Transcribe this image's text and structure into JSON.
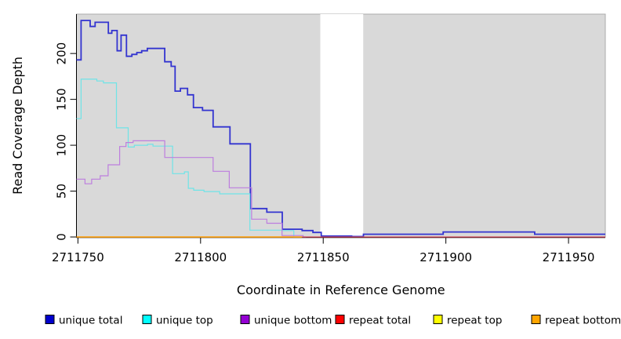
{
  "chart_data": {
    "type": "line",
    "line_style": "step",
    "title": "",
    "xlabel": "Coordinate in Reference Genome",
    "ylabel": "Read Coverage Depth",
    "x_domain": [
      2711749.4,
      2711965
    ],
    "y_domain": [
      0,
      242.9
    ],
    "x_tick_values": [
      2711750,
      2711800,
      2711850,
      2711900,
      2711950
    ],
    "x_tick_labels": [
      "2711750",
      "2711800",
      "2711850",
      "2711900",
      "2711950"
    ],
    "y_tick_values": [
      0,
      50,
      100,
      150,
      200
    ],
    "y_tick_labels": [
      "0",
      "50",
      "100",
      "150",
      "200"
    ],
    "grid": false,
    "panel_bg": "#D9D9D9",
    "panel_border": "#ACACAC",
    "axis_color": "#000000",
    "no_data_band": {
      "x_start": 2711848.8,
      "x_end": 2711866.3,
      "color": "#FFFFFF"
    },
    "legend_position": "bottom",
    "series": [
      {
        "name": "unique total",
        "line_color": "#3334D0",
        "legend_fill": "#0000CD",
        "line_width": 1.8,
        "end_x": 2711965,
        "steps": [
          [
            2711749,
            193
          ],
          [
            2711751.3,
            236
          ],
          [
            2711755,
            229.5
          ],
          [
            2711757,
            234
          ],
          [
            2711762.4,
            222
          ],
          [
            2711763.8,
            225
          ],
          [
            2711766,
            203
          ],
          [
            2711767.6,
            220
          ],
          [
            2711769.8,
            197
          ],
          [
            2711772,
            199
          ],
          [
            2711774,
            201
          ],
          [
            2711776,
            203
          ],
          [
            2711778.3,
            205.5
          ],
          [
            2711785.4,
            191
          ],
          [
            2711788,
            186
          ],
          [
            2711789.6,
            159
          ],
          [
            2711791.8,
            162
          ],
          [
            2711794.7,
            155
          ],
          [
            2711797.1,
            141
          ],
          [
            2711800.8,
            138
          ],
          [
            2711805.1,
            120
          ],
          [
            2711812,
            101.5
          ],
          [
            2711820.3,
            31
          ],
          [
            2711827,
            27
          ],
          [
            2711833.3,
            8.5
          ],
          [
            2711841.4,
            7
          ],
          [
            2711845.8,
            5
          ],
          [
            2711849.2,
            1
          ],
          [
            2711861.6,
            0.5
          ],
          [
            2711866.4,
            3
          ],
          [
            2711898.9,
            5.5
          ],
          [
            2711936.2,
            3
          ]
        ]
      },
      {
        "name": "unique top",
        "line_color": "#6FE4E7",
        "legend_fill": "#00FFFF",
        "line_width": 1.2,
        "end_x": 2711841,
        "steps": [
          [
            2711749,
            129
          ],
          [
            2711751.3,
            172
          ],
          [
            2711757.7,
            170
          ],
          [
            2711760.4,
            168
          ],
          [
            2711765.7,
            119
          ],
          [
            2711770.5,
            98
          ],
          [
            2711773,
            100
          ],
          [
            2711778.4,
            101
          ],
          [
            2711780.6,
            99
          ],
          [
            2711788.6,
            69
          ],
          [
            2711793.4,
            71
          ],
          [
            2711795,
            53
          ],
          [
            2711797.2,
            51
          ],
          [
            2711801.4,
            49.5
          ],
          [
            2711807.8,
            47
          ],
          [
            2711820.1,
            7.4
          ],
          [
            2711833.3,
            7
          ],
          [
            2711838,
            0
          ]
        ]
      },
      {
        "name": "unique bottom",
        "line_color": "#BD7EDE",
        "legend_fill": "#9400D3",
        "line_width": 1.2,
        "end_x": 2711843,
        "steps": [
          [
            2711749,
            63
          ],
          [
            2711752.9,
            58
          ],
          [
            2711755.6,
            63
          ],
          [
            2711759.1,
            66.7
          ],
          [
            2711762.3,
            78.7
          ],
          [
            2711767,
            98.6
          ],
          [
            2711769.6,
            103
          ],
          [
            2711772.5,
            104.9
          ],
          [
            2711785.4,
            86.6
          ],
          [
            2711805.1,
            71.6
          ],
          [
            2711811.7,
            53.6
          ],
          [
            2711820.8,
            19.4
          ],
          [
            2711827,
            15
          ],
          [
            2711833.2,
            1.5
          ],
          [
            2711841.8,
            0
          ]
        ]
      },
      {
        "name": "repeat total",
        "line_color": "#D9495B",
        "legend_fill": "#FF0000",
        "line_width": 1.3,
        "end_x": 2711965,
        "steps": [
          [
            2711749,
            0
          ]
        ]
      },
      {
        "name": "repeat top",
        "line_color": "#FFFF00",
        "legend_fill": "#FFFF00",
        "line_width": 1.2,
        "end_x": 2711841.4,
        "steps": [
          [
            2711749,
            0
          ]
        ]
      },
      {
        "name": "repeat bottom",
        "line_color": "#FFA217",
        "legend_fill": "#FFA500",
        "line_width": 1.6,
        "end_x": 2711841.4,
        "steps": [
          [
            2711749,
            0
          ]
        ]
      }
    ]
  }
}
